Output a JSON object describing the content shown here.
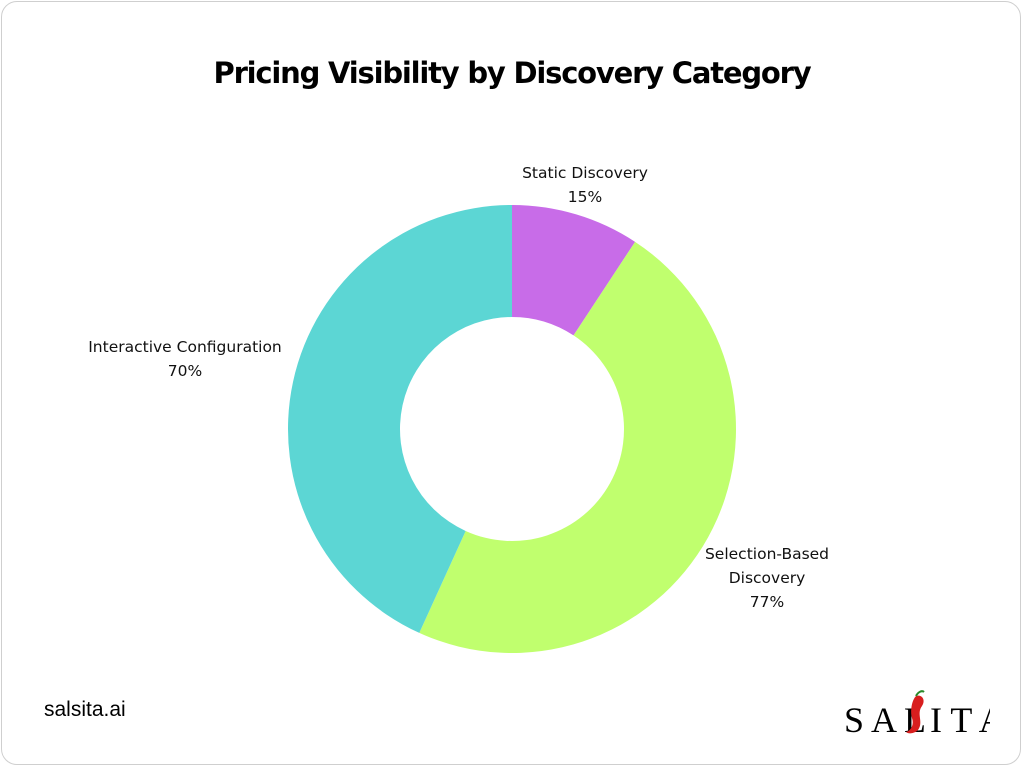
{
  "title": "Pricing Visibility by Discovery Category",
  "chart_data": {
    "type": "donut",
    "title": "Pricing Visibility by Discovery Category",
    "slices": [
      {
        "name": "Static Discovery",
        "label_lines": [
          "Static Discovery"
        ],
        "value": 15,
        "value_label": "15%",
        "color": "#c86ce8"
      },
      {
        "name": "Selection-Based Discovery",
        "label_lines": [
          "Selection-Based",
          "Discovery"
        ],
        "value": 77,
        "value_label": "77%",
        "color": "#c0ff6e"
      },
      {
        "name": "Interactive Configuration",
        "label_lines": [
          "Interactive Configuration"
        ],
        "value": 70,
        "value_label": "70%",
        "color": "#5cd6d4"
      }
    ]
  },
  "footer": {
    "website": "salsita.ai",
    "logo_text": "SALSITA",
    "logo_accent_color": "#d81e1e"
  }
}
